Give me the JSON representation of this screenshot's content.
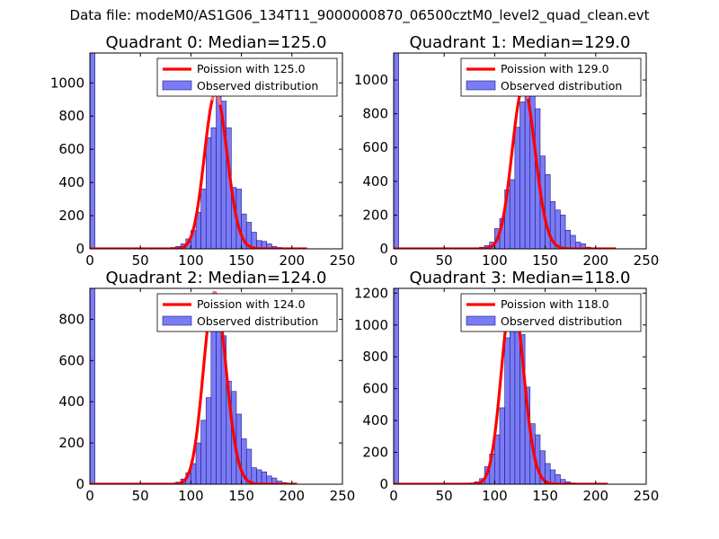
{
  "figure": {
    "suptitle": "Data file: modeM0/AS1G06_134T11_9000000870_06500cztM0_level2_quad_clean.evt",
    "colors": {
      "bar_fill": "#7b7bf5",
      "bar_edge": "#1a1a8a",
      "poisson": "#ff0000",
      "highlight": "#ff8080"
    }
  },
  "chart_data": [
    {
      "type": "bar",
      "title": "Quadrant 0: Median=125.0",
      "xlim": [
        0,
        250
      ],
      "ylim": [
        0,
        1180
      ],
      "xticks": [
        0,
        50,
        100,
        150,
        200,
        250
      ],
      "yticks": [
        0,
        200,
        400,
        600,
        800,
        1000
      ],
      "legend": [
        "Poission with 125.0",
        "Observed distribution"
      ],
      "legend_loc": "upper right",
      "median": 125.0,
      "bin_width": 5,
      "bins": [
        {
          "x": 0,
          "y": 1180
        },
        {
          "x": 80,
          "y": 8
        },
        {
          "x": 85,
          "y": 15
        },
        {
          "x": 90,
          "y": 30
        },
        {
          "x": 95,
          "y": 60
        },
        {
          "x": 100,
          "y": 110
        },
        {
          "x": 105,
          "y": 220
        },
        {
          "x": 110,
          "y": 360
        },
        {
          "x": 115,
          "y": 670
        },
        {
          "x": 120,
          "y": 730
        },
        {
          "x": 125,
          "y": 990
        },
        {
          "x": 130,
          "y": 890
        },
        {
          "x": 135,
          "y": 730
        },
        {
          "x": 140,
          "y": 370
        },
        {
          "x": 145,
          "y": 360
        },
        {
          "x": 150,
          "y": 210
        },
        {
          "x": 155,
          "y": 160
        },
        {
          "x": 160,
          "y": 100
        },
        {
          "x": 165,
          "y": 50
        },
        {
          "x": 170,
          "y": 45
        },
        {
          "x": 175,
          "y": 30
        },
        {
          "x": 180,
          "y": 15
        },
        {
          "x": 185,
          "y": 8
        },
        {
          "x": 190,
          "y": 5
        }
      ],
      "poisson_peak": 940,
      "poisson_range": [
        0,
        215
      ]
    },
    {
      "type": "bar",
      "title": "Quadrant 1: Median=129.0",
      "xlim": [
        0,
        250
      ],
      "ylim": [
        0,
        1160
      ],
      "xticks": [
        0,
        50,
        100,
        150,
        200,
        250
      ],
      "yticks": [
        0,
        200,
        400,
        600,
        800,
        1000
      ],
      "legend": [
        "Poission with 129.0",
        "Observed distribution"
      ],
      "legend_loc": "upper right",
      "median": 129.0,
      "bin_width": 5,
      "bins": [
        {
          "x": 0,
          "y": 1160
        },
        {
          "x": 85,
          "y": 10
        },
        {
          "x": 90,
          "y": 20
        },
        {
          "x": 95,
          "y": 40
        },
        {
          "x": 100,
          "y": 120
        },
        {
          "x": 105,
          "y": 180
        },
        {
          "x": 110,
          "y": 350
        },
        {
          "x": 115,
          "y": 410
        },
        {
          "x": 120,
          "y": 720
        },
        {
          "x": 125,
          "y": 870
        },
        {
          "x": 130,
          "y": 1000
        },
        {
          "x": 135,
          "y": 910
        },
        {
          "x": 140,
          "y": 830
        },
        {
          "x": 145,
          "y": 550
        },
        {
          "x": 150,
          "y": 440
        },
        {
          "x": 155,
          "y": 280
        },
        {
          "x": 160,
          "y": 230
        },
        {
          "x": 165,
          "y": 200
        },
        {
          "x": 170,
          "y": 110
        },
        {
          "x": 175,
          "y": 80
        },
        {
          "x": 180,
          "y": 40
        },
        {
          "x": 185,
          "y": 30
        },
        {
          "x": 190,
          "y": 10
        }
      ],
      "poisson_peak": 960,
      "poisson_range": [
        0,
        220
      ]
    },
    {
      "type": "bar",
      "title": "Quadrant 2: Median=124.0",
      "xlim": [
        0,
        250
      ],
      "ylim": [
        0,
        950
      ],
      "xticks": [
        0,
        50,
        100,
        150,
        200,
        250
      ],
      "yticks": [
        0,
        200,
        400,
        600,
        800
      ],
      "legend": [
        "Poission with 124.0",
        "Observed distribution"
      ],
      "legend_loc": "upper right",
      "median": 124.0,
      "bin_width": 5,
      "bins": [
        {
          "x": 0,
          "y": 950
        },
        {
          "x": 85,
          "y": 10
        },
        {
          "x": 90,
          "y": 25
        },
        {
          "x": 95,
          "y": 55
        },
        {
          "x": 100,
          "y": 100
        },
        {
          "x": 105,
          "y": 200
        },
        {
          "x": 110,
          "y": 310
        },
        {
          "x": 115,
          "y": 420
        },
        {
          "x": 120,
          "y": 760
        },
        {
          "x": 125,
          "y": 780
        },
        {
          "x": 130,
          "y": 720
        },
        {
          "x": 135,
          "y": 500
        },
        {
          "x": 140,
          "y": 450
        },
        {
          "x": 145,
          "y": 340
        },
        {
          "x": 150,
          "y": 220
        },
        {
          "x": 155,
          "y": 170
        },
        {
          "x": 160,
          "y": 80
        },
        {
          "x": 165,
          "y": 70
        },
        {
          "x": 170,
          "y": 60
        },
        {
          "x": 175,
          "y": 40
        },
        {
          "x": 180,
          "y": 30
        },
        {
          "x": 185,
          "y": 15
        },
        {
          "x": 190,
          "y": 8
        }
      ],
      "poisson_peak": 930,
      "poisson_range": [
        0,
        205
      ]
    },
    {
      "type": "bar",
      "title": "Quadrant 3: Median=118.0",
      "xlim": [
        0,
        250
      ],
      "ylim": [
        0,
        1230
      ],
      "xticks": [
        0,
        50,
        100,
        150,
        200,
        250
      ],
      "yticks": [
        0,
        200,
        400,
        600,
        800,
        1000,
        1200
      ],
      "legend": [
        "Poission with 118.0",
        "Observed distribution"
      ],
      "legend_loc": "upper right",
      "median": 118.0,
      "bin_width": 5,
      "bins": [
        {
          "x": 0,
          "y": 1230
        },
        {
          "x": 75,
          "y": 8
        },
        {
          "x": 80,
          "y": 15
        },
        {
          "x": 85,
          "y": 35
        },
        {
          "x": 90,
          "y": 110
        },
        {
          "x": 95,
          "y": 190
        },
        {
          "x": 100,
          "y": 310
        },
        {
          "x": 105,
          "y": 480
        },
        {
          "x": 110,
          "y": 920
        },
        {
          "x": 115,
          "y": 1000
        },
        {
          "x": 120,
          "y": 1110
        },
        {
          "x": 125,
          "y": 940
        },
        {
          "x": 130,
          "y": 610
        },
        {
          "x": 135,
          "y": 380
        },
        {
          "x": 140,
          "y": 310
        },
        {
          "x": 145,
          "y": 210
        },
        {
          "x": 150,
          "y": 130
        },
        {
          "x": 155,
          "y": 90
        },
        {
          "x": 160,
          "y": 60
        },
        {
          "x": 165,
          "y": 30
        },
        {
          "x": 170,
          "y": 15
        },
        {
          "x": 175,
          "y": 8
        }
      ],
      "poisson_peak": 1190,
      "poisson_range": [
        0,
        212
      ]
    }
  ]
}
